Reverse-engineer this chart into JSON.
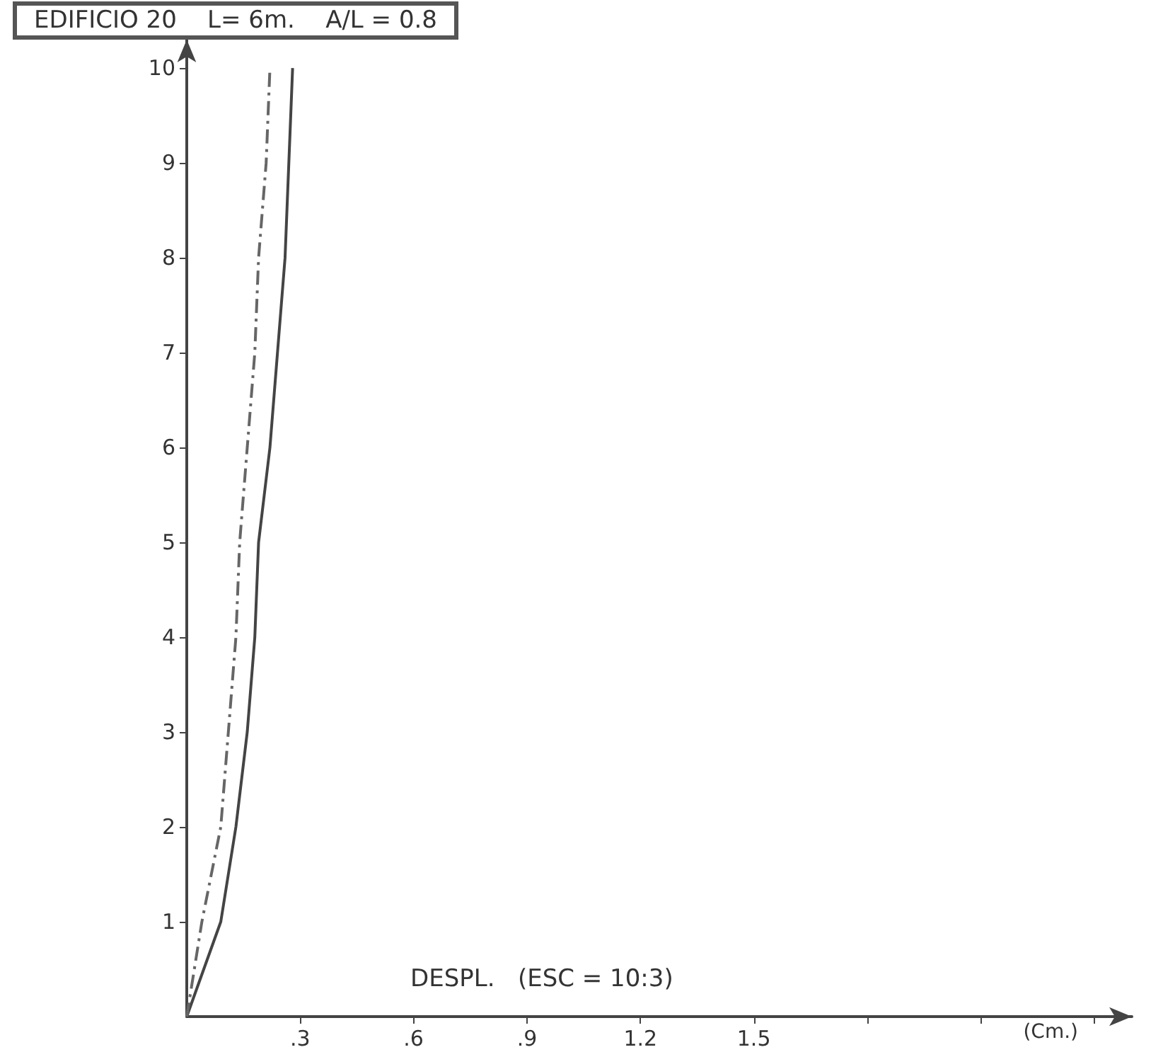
{
  "chart_data": {
    "type": "line",
    "title": "EDIFICIO 20    L= 6m.    A/L = 0.8",
    "xlabel": "DESPL.   (ESC = 10:3)",
    "annotations": [
      "(Cm.)"
    ],
    "series": [
      {
        "color": "#444444",
        "line_style": "solid",
        "x": [
          0,
          0.09,
          0.13,
          0.16,
          0.18,
          0.19,
          0.22,
          0.24,
          0.26,
          0.27,
          0.28
        ],
        "values": [
          0,
          1,
          2,
          3,
          4,
          5,
          6,
          7,
          8,
          9,
          10
        ]
      },
      {
        "color": "#666666",
        "line_style": "dashed",
        "x": [
          0,
          0.04,
          0.09,
          0.11,
          0.13,
          0.14,
          0.16,
          0.18,
          0.19,
          0.21,
          0.22
        ],
        "values": [
          0,
          1,
          2,
          3,
          4,
          5,
          6,
          7,
          8,
          9,
          10
        ]
      }
    ],
    "xlim": [
      0,
      2.5
    ],
    "xticks": [
      {
        "value": 0.3,
        "label": ".3"
      },
      {
        "value": 0.6,
        "label": ".6"
      },
      {
        "value": 0.9,
        "label": ".9"
      },
      1.2,
      1.5,
      {
        "value": 1.8,
        "label": null
      },
      {
        "value": 2.1,
        "label": null
      },
      {
        "value": 2.4,
        "label": null
      }
    ],
    "ylim": [
      0,
      10.3
    ],
    "yticks": [
      1,
      2,
      3,
      4,
      5,
      6,
      7,
      8,
      9,
      10
    ],
    "grid": false,
    "marker": "none"
  }
}
